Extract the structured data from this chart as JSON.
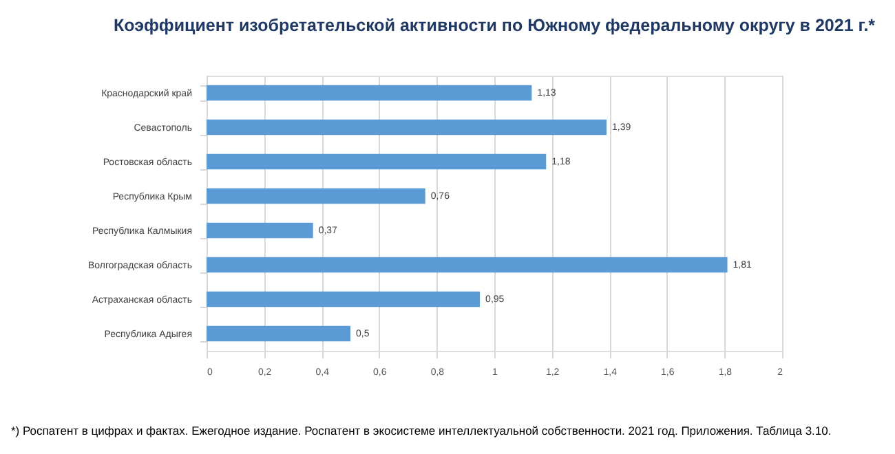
{
  "chart_data": {
    "type": "bar",
    "orientation": "horizontal",
    "title": "Коэффициент изобретательской активности по Южному федеральному округу в 2021 г.*",
    "categories": [
      "Краснодарский край",
      "Севастополь",
      "Ростовская область",
      "Республика Крым",
      "Республика Калмыкия",
      "Волгоградская область",
      "Астраханская область",
      "Республика Адыгея"
    ],
    "values": [
      1.13,
      1.39,
      1.18,
      0.76,
      0.37,
      1.81,
      0.95,
      0.5
    ],
    "value_labels": [
      "1,13",
      "1,39",
      "1,18",
      "0,76",
      "0,37",
      "1,81",
      "0,95",
      "0,5"
    ],
    "color": "#5b9bd5",
    "xlim": [
      0,
      2
    ],
    "xticks": [
      0,
      {
        "value": 0.2,
        "label": "0,2"
      },
      {
        "value": 0.4,
        "label": "0,4"
      },
      {
        "value": 0.6,
        "label": "0,6"
      },
      {
        "value": 0.8,
        "label": "0,8"
      },
      1,
      {
        "value": 1.2,
        "label": "1,2"
      },
      {
        "value": 1.4,
        "label": "1,4"
      },
      {
        "value": 1.6,
        "label": "1,6"
      },
      {
        "value": 1.8,
        "label": "1,8"
      },
      2
    ],
    "grid": "x",
    "annotations": [
      "*) Роспатент в цифрах и фактах. Ежегодное издание. Роспатент в экосистеме интеллектуальной собственности. 2021 год. Приложения. Таблица 3.10."
    ]
  }
}
